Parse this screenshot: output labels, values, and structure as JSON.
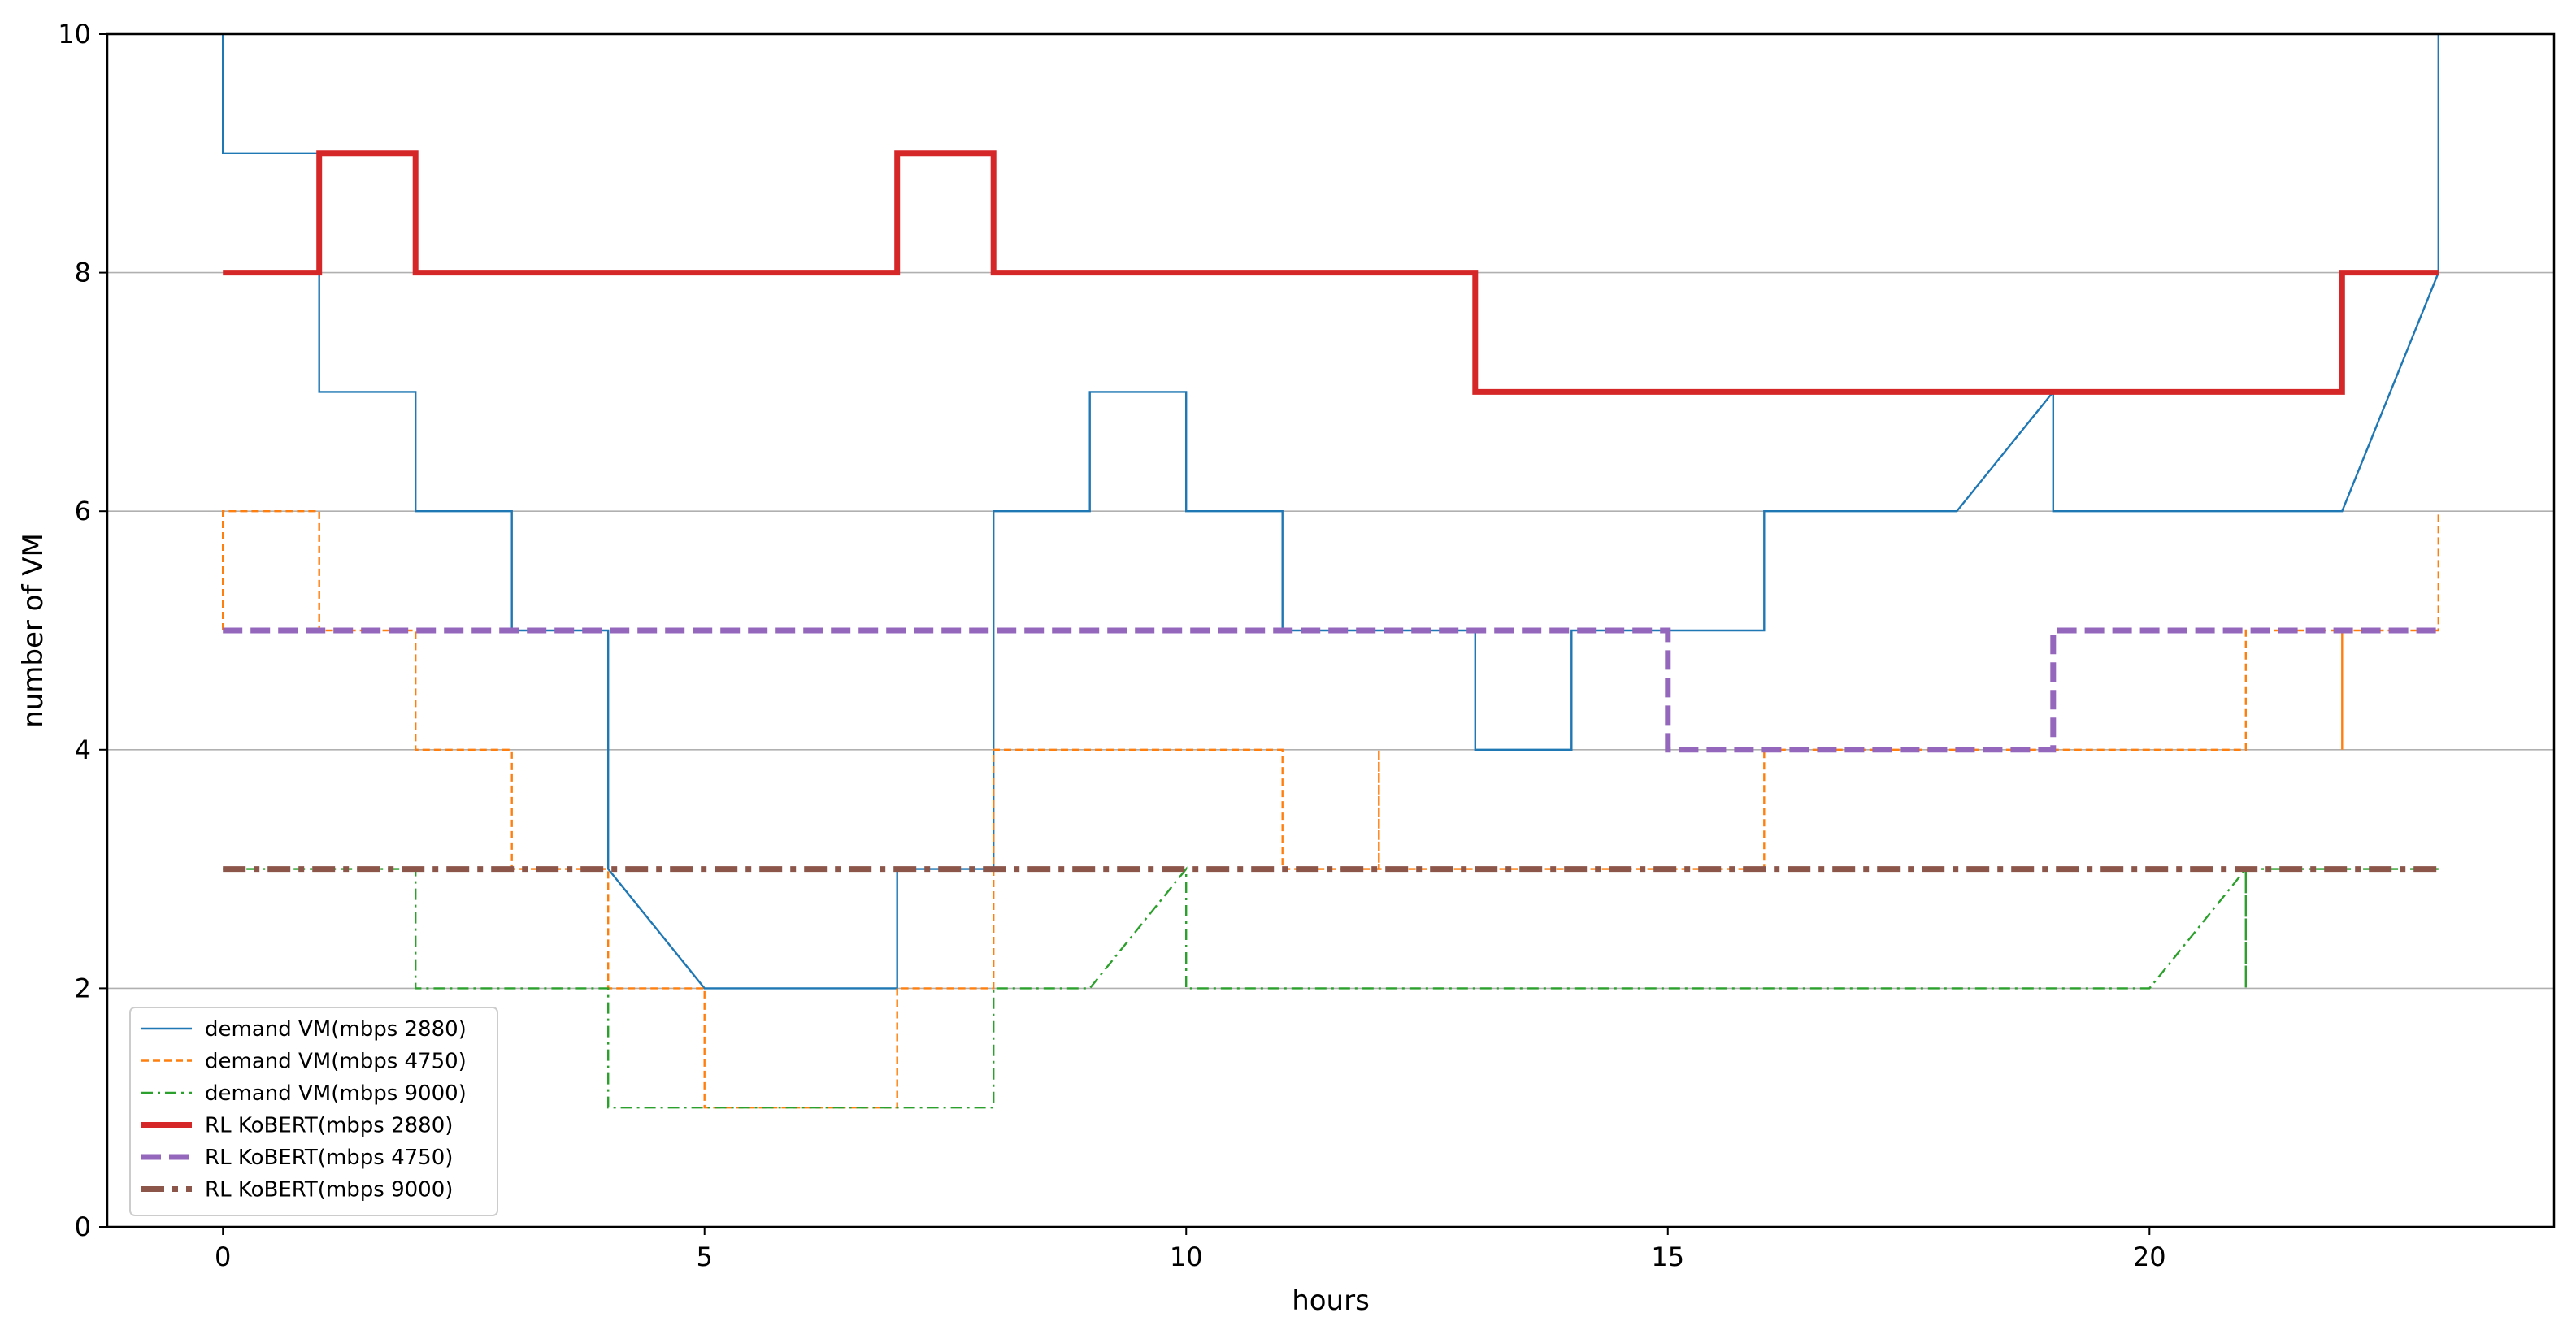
{
  "chart_data": {
    "type": "line",
    "title": "",
    "xlabel": "hours",
    "ylabel": "number of VM",
    "xlim": [
      -1.2,
      24.2
    ],
    "ylim": [
      0,
      10
    ],
    "xticks": [
      0,
      5,
      10,
      15,
      20
    ],
    "yticks": [
      0,
      2,
      4,
      6,
      8,
      10
    ],
    "grid": "horizontal",
    "legend_position": "lower-left",
    "series": [
      {
        "name": "demand VM(mbps 2880)",
        "color": "#1f77b4",
        "style": "solid-thin",
        "points": [
          [
            0,
            10
          ],
          [
            0,
            9
          ],
          [
            1,
            9
          ],
          [
            1,
            7
          ],
          [
            2,
            7
          ],
          [
            2,
            6
          ],
          [
            3,
            6
          ],
          [
            3,
            5
          ],
          [
            4,
            5
          ],
          [
            4,
            3
          ],
          [
            5,
            2
          ],
          [
            6,
            2
          ],
          [
            7,
            2
          ],
          [
            7,
            3
          ],
          [
            8,
            3
          ],
          [
            8,
            6
          ],
          [
            9,
            6
          ],
          [
            9,
            7
          ],
          [
            10,
            7
          ],
          [
            10,
            6
          ],
          [
            11,
            6
          ],
          [
            11,
            5
          ],
          [
            12,
            5
          ],
          [
            13,
            5
          ],
          [
            13,
            4
          ],
          [
            14,
            4
          ],
          [
            14,
            5
          ],
          [
            15,
            5
          ],
          [
            16,
            5
          ],
          [
            16,
            6
          ],
          [
            17,
            6
          ],
          [
            18,
            6
          ],
          [
            19,
            7
          ],
          [
            19,
            6
          ],
          [
            20,
            6
          ],
          [
            21,
            6
          ],
          [
            22,
            6
          ],
          [
            23,
            8
          ],
          [
            23,
            10
          ]
        ]
      },
      {
        "name": "demand VM(mbps 4750)",
        "color": "#ff7f0e",
        "style": "dashed-thin",
        "points": [
          [
            0,
            5
          ],
          [
            0,
            6
          ],
          [
            1,
            6
          ],
          [
            1,
            5
          ],
          [
            2,
            5
          ],
          [
            2,
            4
          ],
          [
            3,
            4
          ],
          [
            3,
            3
          ],
          [
            4,
            3
          ],
          [
            4,
            2
          ],
          [
            5,
            2
          ],
          [
            5,
            1
          ],
          [
            6,
            1
          ],
          [
            7,
            1
          ],
          [
            7,
            2
          ],
          [
            8,
            2
          ],
          [
            8,
            4
          ],
          [
            9,
            4
          ],
          [
            10,
            4
          ],
          [
            11,
            4
          ],
          [
            11,
            3
          ],
          [
            12,
            3
          ],
          [
            12,
            4
          ],
          [
            12,
            3
          ],
          [
            13,
            3
          ],
          [
            14,
            3
          ],
          [
            15,
            3
          ],
          [
            16,
            3
          ],
          [
            16,
            4
          ],
          [
            17,
            4
          ],
          [
            18,
            4
          ],
          [
            19,
            4
          ],
          [
            20,
            4
          ],
          [
            21,
            4
          ],
          [
            21,
            5
          ],
          [
            22,
            5
          ],
          [
            22,
            4
          ],
          [
            22,
            5
          ],
          [
            23,
            5
          ],
          [
            23,
            6
          ]
        ]
      },
      {
        "name": "demand VM(mbps 9000)",
        "color": "#2ca02c",
        "style": "dashdot-thin",
        "points": [
          [
            0,
            3
          ],
          [
            1,
            3
          ],
          [
            2,
            3
          ],
          [
            2,
            2
          ],
          [
            3,
            2
          ],
          [
            4,
            2
          ],
          [
            4,
            1
          ],
          [
            5,
            1
          ],
          [
            6,
            1
          ],
          [
            7,
            1
          ],
          [
            8,
            1
          ],
          [
            8,
            2
          ],
          [
            9,
            2
          ],
          [
            10,
            3
          ],
          [
            10,
            2
          ],
          [
            11,
            2
          ],
          [
            12,
            2
          ],
          [
            13,
            2
          ],
          [
            14,
            2
          ],
          [
            15,
            2
          ],
          [
            16,
            2
          ],
          [
            17,
            2
          ],
          [
            18,
            2
          ],
          [
            19,
            2
          ],
          [
            20,
            2
          ],
          [
            21,
            3
          ],
          [
            21,
            2
          ],
          [
            21,
            3
          ],
          [
            22,
            3
          ],
          [
            23,
            3
          ]
        ]
      },
      {
        "name": "RL KoBERT(mbps 2880)",
        "color": "#d62728",
        "style": "solid-thick",
        "points": [
          [
            0,
            8
          ],
          [
            1,
            8
          ],
          [
            1,
            9
          ],
          [
            2,
            9
          ],
          [
            2,
            8
          ],
          [
            3,
            8
          ],
          [
            4,
            8
          ],
          [
            5,
            8
          ],
          [
            6,
            8
          ],
          [
            7,
            8
          ],
          [
            7,
            9
          ],
          [
            8,
            9
          ],
          [
            8,
            8
          ],
          [
            9,
            8
          ],
          [
            10,
            8
          ],
          [
            11,
            8
          ],
          [
            12,
            8
          ],
          [
            13,
            8
          ],
          [
            13,
            7
          ],
          [
            14,
            7
          ],
          [
            15,
            7
          ],
          [
            16,
            7
          ],
          [
            17,
            7
          ],
          [
            18,
            7
          ],
          [
            19,
            7
          ],
          [
            20,
            7
          ],
          [
            21,
            7
          ],
          [
            22,
            7
          ],
          [
            22,
            8
          ],
          [
            23,
            8
          ]
        ]
      },
      {
        "name": "RL KoBERT(mbps 4750)",
        "color": "#9467bd",
        "style": "dashed-thick",
        "points": [
          [
            0,
            5
          ],
          [
            1,
            5
          ],
          [
            2,
            5
          ],
          [
            3,
            5
          ],
          [
            4,
            5
          ],
          [
            5,
            5
          ],
          [
            6,
            5
          ],
          [
            7,
            5
          ],
          [
            8,
            5
          ],
          [
            9,
            5
          ],
          [
            10,
            5
          ],
          [
            11,
            5
          ],
          [
            12,
            5
          ],
          [
            13,
            5
          ],
          [
            14,
            5
          ],
          [
            15,
            5
          ],
          [
            15,
            4
          ],
          [
            16,
            4
          ],
          [
            17,
            4
          ],
          [
            18,
            4
          ],
          [
            19,
            4
          ],
          [
            19,
            5
          ],
          [
            20,
            5
          ],
          [
            21,
            5
          ],
          [
            22,
            5
          ],
          [
            23,
            5
          ]
        ]
      },
      {
        "name": "RL KoBERT(mbps 9000)",
        "color": "#8c564b",
        "style": "dashdot-thick",
        "points": [
          [
            0,
            3
          ],
          [
            23,
            3
          ]
        ]
      }
    ]
  }
}
